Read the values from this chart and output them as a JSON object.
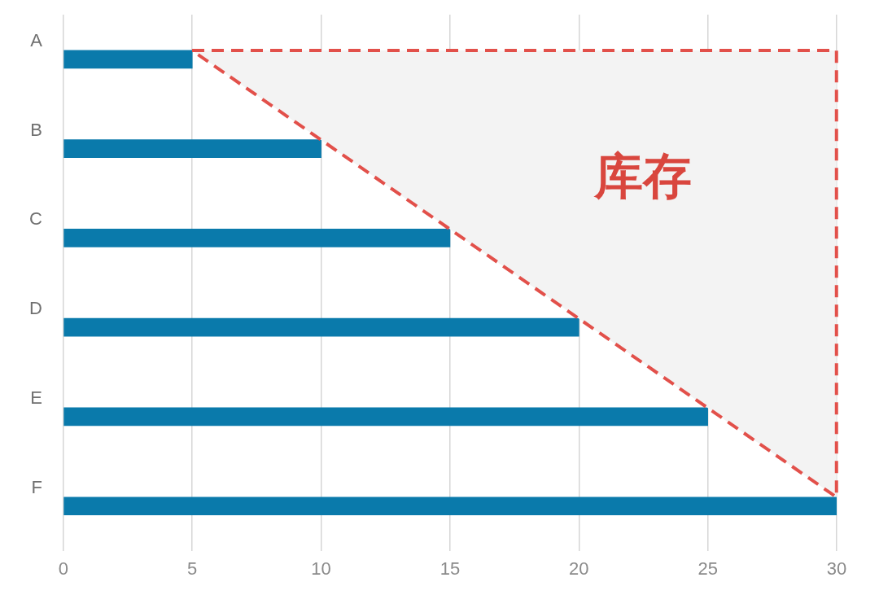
{
  "chart_data": {
    "type": "bar",
    "orientation": "horizontal",
    "categories": [
      "A",
      "B",
      "C",
      "D",
      "E",
      "F"
    ],
    "values": [
      5,
      10,
      15,
      20,
      25,
      30
    ],
    "color": "#0a7aab",
    "xlim": [
      0,
      30
    ],
    "xticks": [
      0,
      5,
      10,
      15,
      20,
      25,
      30
    ],
    "grid": "x",
    "annotations": [
      "库存"
    ]
  }
}
